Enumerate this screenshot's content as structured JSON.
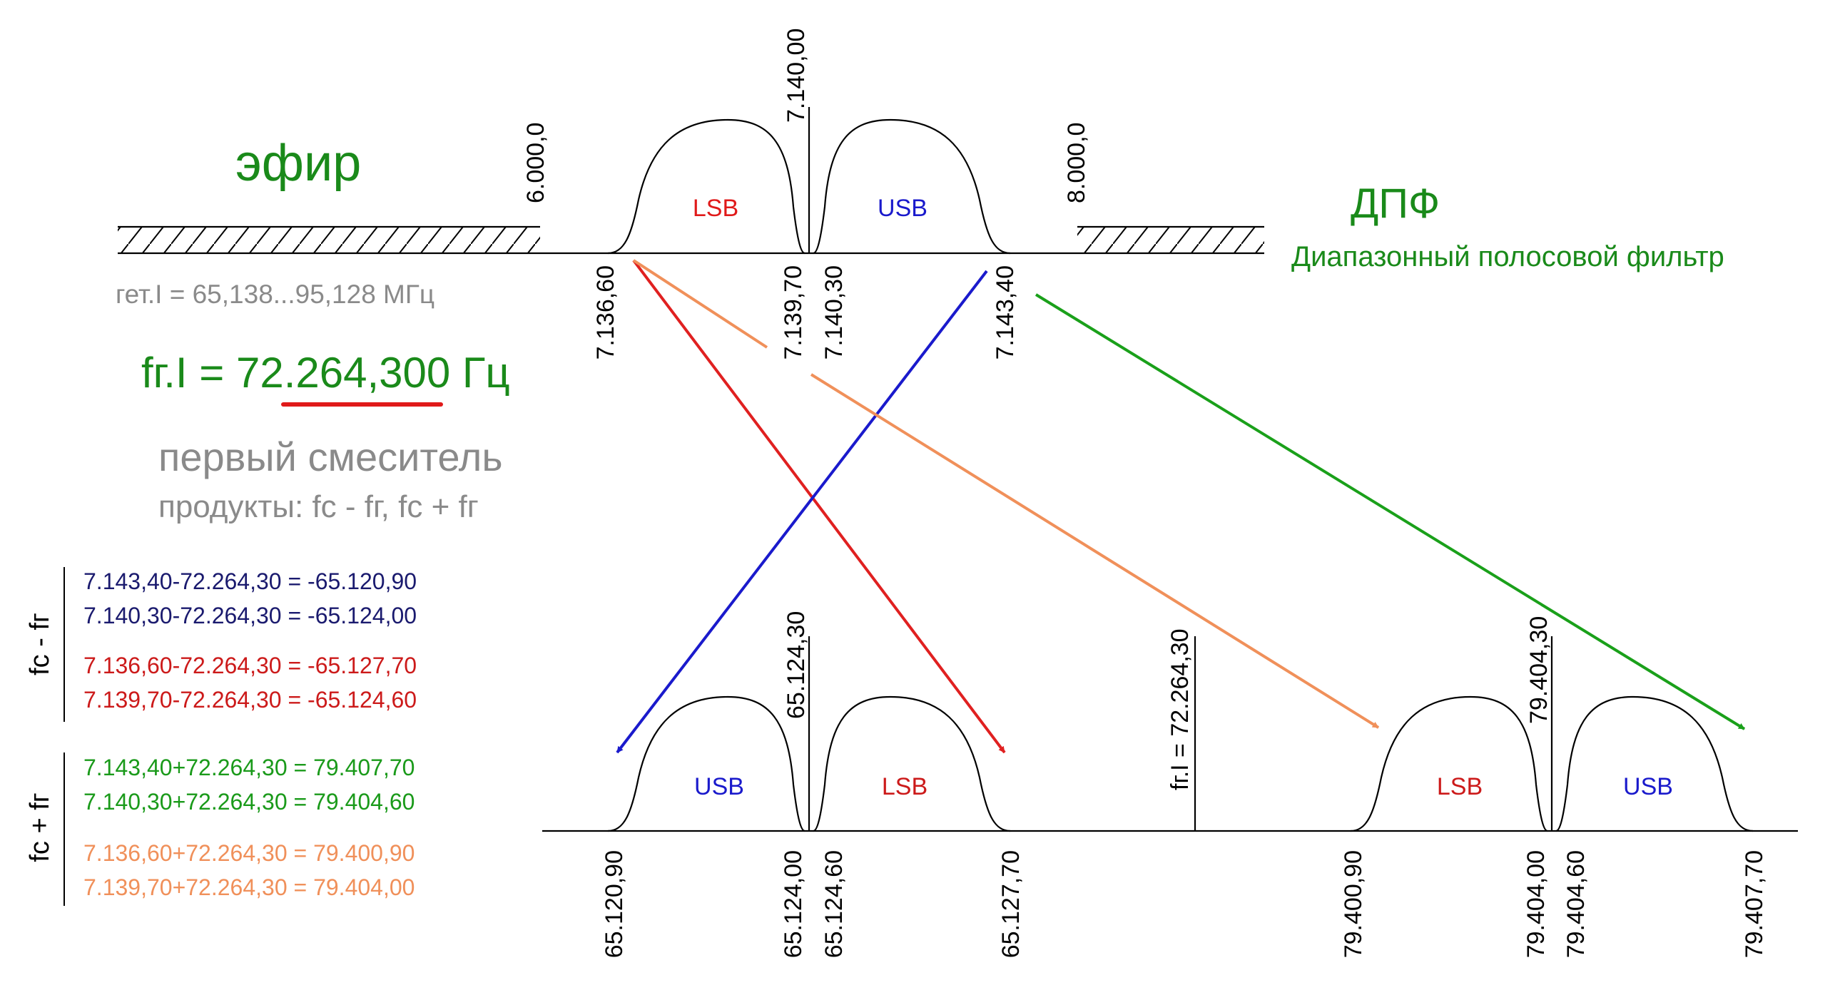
{
  "air": {
    "title": "эфир",
    "freq_6000": "6.000,0",
    "freq_8000": "8.000,0",
    "freq_7140": "7.140,00",
    "lsb": "LSB",
    "usb": "USB",
    "tick_713660": "7.136,60",
    "tick_713970": "7.139,70",
    "tick_714030": "7.140,30",
    "tick_714340": "7.143,40"
  },
  "dpf": {
    "title": "ДПФ",
    "subtitle": "Диапазонный полосовой фильтр"
  },
  "lo": {
    "range": "гет.I = 65,138...95,128 МГц",
    "freq": "fг.I = 72.264,300 Гц"
  },
  "mixer": {
    "title": "первый смеситель",
    "products": "продукты: fc - fг, fc + fг"
  },
  "diff": {
    "label": "fc - fг",
    "lines": [
      "7.143,40-72.264,30 = -65.120,90",
      "7.140,30-72.264,30 = -65.124,00",
      "7.136,60-72.264,30 = -65.127,70",
      "7.139,70-72.264,30 = -65.124,60"
    ]
  },
  "sum": {
    "label": "fc + fг",
    "lines": [
      "7.143,40+72.264,30 = 79.407,70",
      "7.140,30+72.264,30 = 79.404,60",
      "7.136,60+72.264,30 = 79.400,90",
      "7.139,70+72.264,30 = 79.404,00"
    ]
  },
  "lower": {
    "center_65": "65.124,30",
    "lo_marker": "fг.I = 72.264,30",
    "center_79": "79.404,30",
    "usb": "USB",
    "lsb": "LSB",
    "tick_6512090": "65.120,90",
    "tick_6512400": "65.124,00",
    "tick_6512460": "65.124,60",
    "tick_6512770": "65.127,70",
    "tick_7940090": "79.400,90",
    "tick_7940400": "79.404,00",
    "tick_7940460": "79.404,60",
    "tick_7940770": "79.407,70"
  },
  "colors": {
    "green": "#1a8a1a",
    "gray": "#8a8a8a",
    "red": "#e01a1a",
    "navy": "#1a1a6e",
    "blue": "#1a1acc",
    "orange": "#f0905a",
    "arrow_green": "#1aa01a",
    "arrow_red": "#e02020"
  }
}
